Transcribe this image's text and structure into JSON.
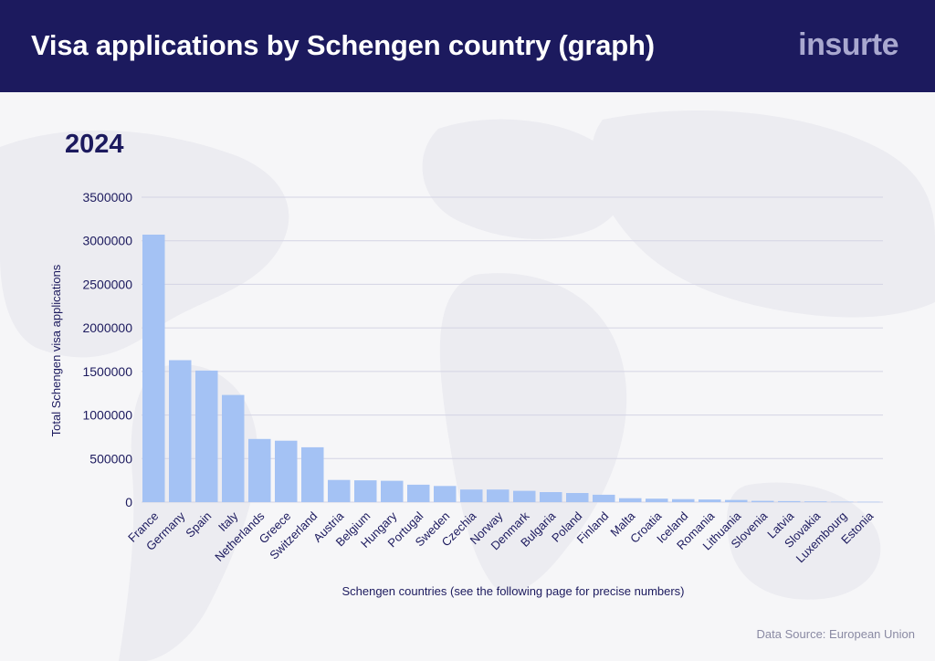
{
  "header": {
    "title": "Visa applications by Schengen country (graph)",
    "brand": "insurte"
  },
  "year_label": "2024",
  "source": "Data Source: European Union",
  "colors": {
    "header_bg": "#1c1a5e",
    "bar": "#a4c2f4",
    "text": "#1c1a5e",
    "grid": "#d4d4e4"
  },
  "chart_data": {
    "type": "bar",
    "title": "2024",
    "xlabel": "Schengen countries (see the following page for precise numbers)",
    "ylabel": "Total Schengen visa applications",
    "ylim": [
      0,
      3500000
    ],
    "yticks": [
      0,
      500000,
      1000000,
      1500000,
      2000000,
      2500000,
      3000000,
      3500000
    ],
    "grid": true,
    "categories": [
      "France",
      "Germany",
      "Spain",
      "Italy",
      "Netherlands",
      "Greece",
      "Switzerland",
      "Austria",
      "Belgium",
      "Hungary",
      "Portugal",
      "Sweden",
      "Czechia",
      "Norway",
      "Denmark",
      "Bulgaria",
      "Poland",
      "Finland",
      "Malta",
      "Croatia",
      "Iceland",
      "Romania",
      "Lithuania",
      "Slovenia",
      "Latvia",
      "Slovakia",
      "Luxembourg",
      "Estonia"
    ],
    "values": [
      3070000,
      1630000,
      1510000,
      1230000,
      725000,
      705000,
      630000,
      255000,
      250000,
      245000,
      200000,
      185000,
      145000,
      145000,
      130000,
      115000,
      105000,
      85000,
      45000,
      40000,
      35000,
      30000,
      25000,
      15000,
      12000,
      8000,
      5000,
      4000
    ]
  }
}
